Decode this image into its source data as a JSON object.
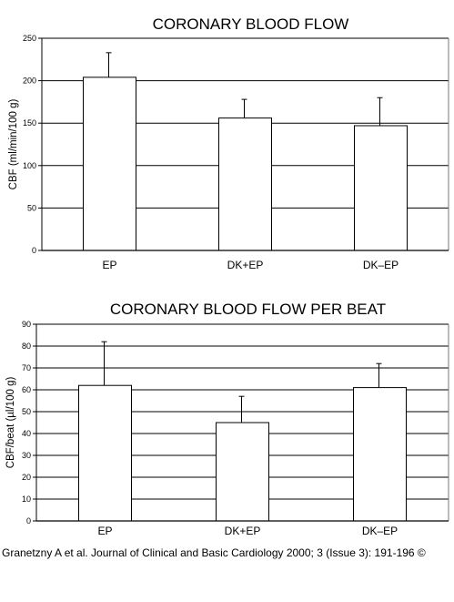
{
  "chart_data": [
    {
      "type": "bar",
      "title": "CORONARY BLOOD FLOW",
      "ylabel": "CBF (ml/min/100 g)",
      "xlabel": "",
      "categories": [
        "EP",
        "DK+EP",
        "DK–EP"
      ],
      "values": [
        204,
        156,
        147
      ],
      "errors": [
        29,
        22,
        33
      ],
      "ylim": [
        0,
        250
      ],
      "yticks": [
        0,
        50,
        100,
        150,
        200,
        250
      ],
      "grid": true,
      "bar_color": "#ffffff",
      "grid_color": "#000000"
    },
    {
      "type": "bar",
      "title": "CORONARY BLOOD FLOW PER BEAT",
      "ylabel": "CBF/beat (µl/100 g)",
      "xlabel": "",
      "categories": [
        "EP",
        "DK+EP",
        "DK–EP"
      ],
      "values": [
        62,
        45,
        61
      ],
      "errors": [
        20,
        12,
        11
      ],
      "ylim": [
        0,
        90
      ],
      "yticks": [
        0,
        10,
        20,
        30,
        40,
        50,
        60,
        70,
        80,
        90
      ],
      "grid": true,
      "bar_color": "#ffffff",
      "grid_color": "#000000"
    }
  ],
  "caption": "Granetzny A et al. Journal of Clinical and Basic Cardiology 2000; 3 (Issue 3): 191-196 ©"
}
